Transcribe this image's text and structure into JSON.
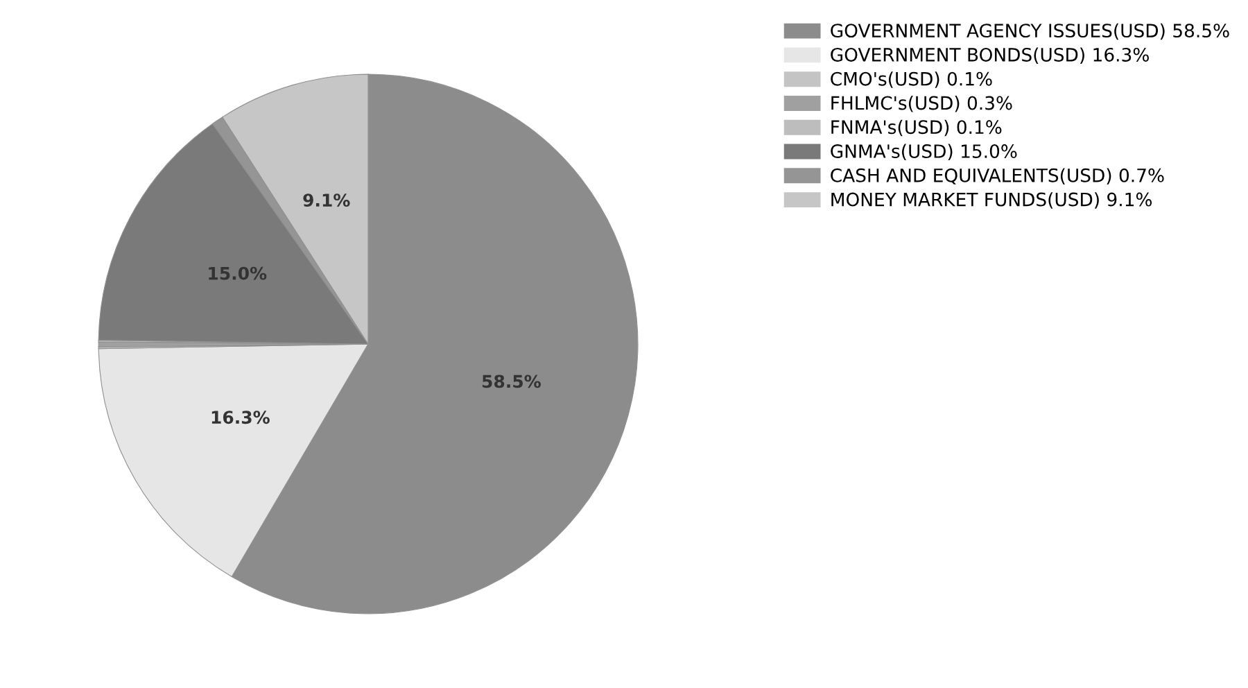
{
  "chart_data": {
    "type": "pie",
    "categories": [
      "GOVERNMENT AGENCY ISSUES(USD) 58.5%",
      "GOVERNMENT BONDS(USD) 16.3%",
      "CMO's(USD) 0.1%",
      "FHLMC's(USD) 0.3%",
      "FNMA's(USD) 0.1%",
      "GNMA's(USD) 15.0%",
      "CASH AND EQUIVALENTS(USD) 0.7%",
      "MONEY MARKET FUNDS(USD) 9.1%"
    ],
    "values": [
      58.5,
      16.3,
      0.1,
      0.3,
      0.1,
      15.0,
      0.7,
      9.1
    ],
    "value_labels": [
      "58.5%",
      "16.3%",
      null,
      null,
      null,
      "15.0%",
      null,
      "9.1%"
    ],
    "colors": [
      "#8c8c8c",
      "#e6e6e6",
      "#c4c4c4",
      "#a0a0a0",
      "#bdbdbd",
      "#7a7a7a",
      "#959595",
      "#c6c6c6"
    ],
    "legend": "right"
  }
}
